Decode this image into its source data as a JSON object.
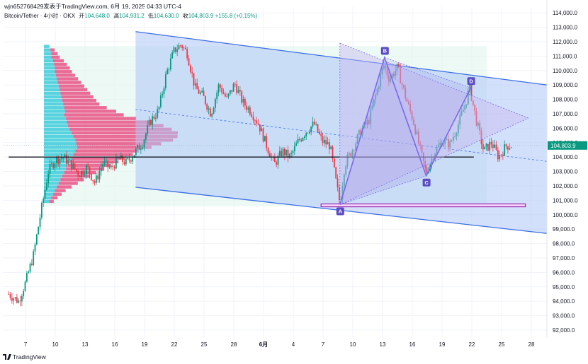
{
  "header": {
    "publish_line": "wjn652768429发表于TradingView.com, 6月 19, 2025 04:33 UTC-4"
  },
  "symbol": {
    "name": "Bitcoin/Tether · 4小时 · OKX",
    "open_label": "开",
    "open": "104,648.0",
    "high_label": "高",
    "high": "104,931.2",
    "low_label": "低",
    "low": "104,630.0",
    "close_label": "收",
    "close": "104,803.9",
    "change": "+155.8 (+0.15%)"
  },
  "brand": {
    "name": "TradingView"
  },
  "colors": {
    "up": "#089981",
    "down": "#f23645",
    "channel_fill": "#aec6f7",
    "channel_line": "#3a6ee8",
    "pattern": "#7b68ee",
    "label_bg": "#5b4bc4",
    "vp_up": "#26c6da",
    "vp_down": "#e91e63",
    "support": "#9c27b0",
    "poc": "#131722"
  },
  "chart_data": {
    "type": "candlestick",
    "title": "Bitcoin/Tether · 4小时 · OKX",
    "x_ticks": [
      "7",
      "10",
      "13",
      "16",
      "19",
      "22",
      "25",
      "28",
      "6月",
      "4",
      "7",
      "10",
      "13",
      "16",
      "19",
      "22",
      "25",
      "28"
    ],
    "y_ticks": [
      "114,000.0",
      "113,000.0",
      "112,000.0",
      "111,000.0",
      "110,000.0",
      "109,000.0",
      "108,000.0",
      "107,000.0",
      "106,000.0",
      "105,000.0",
      "104,000.0",
      "103,000.0",
      "102,000.0",
      "101,000.0",
      "100,000.0",
      "99,000.0",
      "98,000.0",
      "97,000.0",
      "96,000.0",
      "95,000.0",
      "94,000.0",
      "93,000.0",
      "92,000.0"
    ],
    "ylim": [
      91700,
      114300
    ],
    "price_path": [
      [
        5.3,
        94500
      ],
      [
        6.3,
        94000
      ],
      [
        7.0,
        95300
      ],
      [
        7.8,
        97200
      ],
      [
        8.5,
        100000
      ],
      [
        9.3,
        103000
      ],
      [
        10.0,
        103800
      ],
      [
        10.8,
        104000
      ],
      [
        11.6,
        103500
      ],
      [
        12.4,
        102800
      ],
      [
        13.2,
        103300
      ],
      [
        14.0,
        102200
      ],
      [
        14.8,
        103600
      ],
      [
        15.6,
        103200
      ],
      [
        16.4,
        103900
      ],
      [
        17.2,
        103600
      ],
      [
        18.0,
        104300
      ],
      [
        18.8,
        105000
      ],
      [
        19.6,
        106500
      ],
      [
        20.4,
        107200
      ],
      [
        21.2,
        109800
      ],
      [
        22.0,
        111400
      ],
      [
        22.7,
        111800
      ],
      [
        23.3,
        111200
      ],
      [
        24.1,
        108800
      ],
      [
        24.9,
        108200
      ],
      [
        25.7,
        107000
      ],
      [
        26.5,
        109000
      ],
      [
        27.3,
        108000
      ],
      [
        28.1,
        109100
      ],
      [
        28.9,
        107800
      ],
      [
        29.7,
        107200
      ],
      [
        30.5,
        106300
      ],
      [
        31.3,
        104800
      ],
      [
        32.1,
        103500
      ],
      [
        32.9,
        104400
      ],
      [
        33.7,
        104000
      ],
      [
        34.5,
        105100
      ],
      [
        35.3,
        105800
      ],
      [
        36.1,
        106300
      ],
      [
        36.9,
        105100
      ],
      [
        37.7,
        104800
      ],
      [
        38.4,
        101900
      ],
      [
        38.7,
        100800
      ],
      [
        39.2,
        103500
      ],
      [
        40.0,
        104600
      ],
      [
        40.8,
        105800
      ],
      [
        41.6,
        106500
      ],
      [
        42.4,
        108500
      ],
      [
        43.1,
        110400
      ],
      [
        43.7,
        109400
      ],
      [
        44.5,
        110200
      ],
      [
        45.3,
        108200
      ],
      [
        46.1,
        106500
      ],
      [
        46.9,
        104200
      ],
      [
        47.4,
        102900
      ],
      [
        48.2,
        104300
      ],
      [
        49.0,
        105100
      ],
      [
        49.8,
        104900
      ],
      [
        50.6,
        106200
      ],
      [
        51.4,
        107800
      ],
      [
        51.8,
        108800
      ],
      [
        52.4,
        106700
      ],
      [
        53.2,
        104400
      ],
      [
        54.0,
        105000
      ],
      [
        54.7,
        104000
      ],
      [
        55.5,
        104800
      ],
      [
        56.0,
        104800
      ]
    ],
    "channel": {
      "upper": [
        [
          18.1,
          112700
        ],
        [
          59.6,
          109000
        ]
      ],
      "lower": [
        [
          18.1,
          101900
        ],
        [
          59.6,
          98700
        ]
      ],
      "midline": [
        [
          18.1,
          107300
        ],
        [
          59.6,
          103700
        ]
      ]
    },
    "abcd_pattern": {
      "points": [
        {
          "label": "A",
          "x": 38.7,
          "y": 100700
        },
        {
          "label": "B",
          "x": 43.2,
          "y": 110900
        },
        {
          "label": "C",
          "x": 47.4,
          "y": 102700
        },
        {
          "label": "D",
          "x": 51.9,
          "y": 108800
        }
      ],
      "triangle_apex": [
        57.7,
        106700
      ],
      "triangle_top_start": [
        38.7,
        111900
      ]
    },
    "support_zone": {
      "from": [
        36.8,
        100550
      ],
      "to": [
        57.4,
        100750
      ]
    },
    "poc_line": {
      "price": 104000,
      "from": 5.3,
      "to": 52.2
    },
    "current_price_line": 104803.9,
    "volume_profile": {
      "price_from": 100800,
      "price_to": 111800,
      "rows": 44,
      "up_lengths": [
        6,
        7,
        8,
        8,
        10,
        11,
        12,
        12,
        13,
        14,
        15,
        16,
        17,
        18,
        19,
        20,
        21,
        22,
        23,
        22,
        24,
        25,
        26,
        28,
        30,
        32,
        34,
        35,
        36,
        34,
        32,
        30,
        28,
        26,
        24,
        22,
        20,
        18,
        16,
        14,
        12,
        10,
        8,
        6
      ],
      "down_lengths": [
        0,
        4,
        6,
        8,
        10,
        12,
        14,
        16,
        18,
        20,
        22,
        24,
        26,
        28,
        30,
        32,
        34,
        40,
        48,
        56,
        66,
        80,
        90,
        96,
        100,
        98,
        92,
        80,
        70,
        60,
        56,
        50,
        46,
        40,
        36,
        30,
        26,
        22,
        18,
        14,
        10,
        8,
        6,
        4
      ]
    }
  }
}
